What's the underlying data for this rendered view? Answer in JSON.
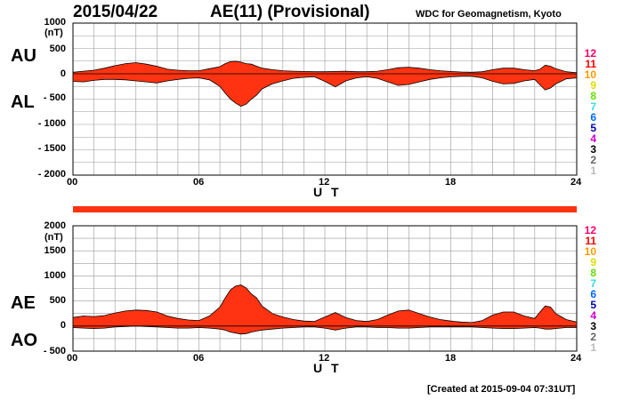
{
  "header": {
    "date": "2015/04/22",
    "title": "AE(11) (Provisional)",
    "source": "WDC for Geomagnetism, Kyoto"
  },
  "footer": {
    "created": "[Created at 2015-09-04 07:31UT]"
  },
  "colors": {
    "fill": "#ff3311",
    "outline": "#000000",
    "grid": "#999999",
    "band": "#ff3311"
  },
  "chart_data": [
    {
      "type": "area",
      "series_labels": [
        "AU",
        "AL"
      ],
      "unit": "(nT)",
      "xlabel": "U T",
      "xlim": [
        0,
        24
      ],
      "ylim": [
        -2000,
        1000
      ],
      "yticks": [
        "1000",
        "500",
        "0",
        "- 500",
        "- 1000",
        "- 1500",
        "- 2000"
      ],
      "xticks": [
        "00",
        "06",
        "12",
        "18",
        "24"
      ],
      "x": [
        0,
        0.5,
        1,
        1.5,
        2,
        2.5,
        3,
        3.5,
        4,
        4.5,
        5,
        5.5,
        6,
        6.5,
        7,
        7.25,
        7.5,
        7.75,
        8,
        8.25,
        8.5,
        8.75,
        9,
        9.5,
        10,
        10.5,
        11,
        11.5,
        12,
        12.5,
        13,
        13.5,
        14,
        14.5,
        15,
        15.5,
        16,
        16.5,
        17,
        17.5,
        18,
        18.5,
        19,
        19.5,
        20,
        20.5,
        21,
        21.5,
        22,
        22.25,
        22.5,
        22.75,
        23,
        23.5,
        24
      ],
      "upper": [
        30,
        50,
        70,
        110,
        160,
        200,
        220,
        190,
        150,
        90,
        70,
        60,
        60,
        100,
        140,
        200,
        240,
        250,
        230,
        200,
        190,
        150,
        110,
        80,
        60,
        50,
        45,
        40,
        40,
        45,
        50,
        40,
        40,
        50,
        80,
        120,
        130,
        110,
        80,
        60,
        45,
        35,
        30,
        40,
        80,
        110,
        110,
        80,
        60,
        90,
        170,
        150,
        100,
        40,
        20
      ],
      "lower": [
        -150,
        -160,
        -130,
        -110,
        -110,
        -120,
        -140,
        -160,
        -180,
        -140,
        -110,
        -90,
        -80,
        -120,
        -250,
        -380,
        -500,
        -580,
        -640,
        -600,
        -500,
        -420,
        -300,
        -200,
        -140,
        -90,
        -70,
        -60,
        -150,
        -260,
        -140,
        -80,
        -60,
        -90,
        -160,
        -230,
        -210,
        -160,
        -110,
        -80,
        -60,
        -50,
        -50,
        -80,
        -150,
        -200,
        -190,
        -140,
        -110,
        -220,
        -320,
        -280,
        -200,
        -100,
        -80
      ]
    },
    {
      "type": "area",
      "series_labels": [
        "AE",
        "AO"
      ],
      "unit": "(nT)",
      "xlabel": "U T",
      "xlim": [
        0,
        24
      ],
      "ylim": [
        -500,
        2000
      ],
      "yticks": [
        "2000",
        "1500",
        "1000",
        "500",
        "0",
        "- 500"
      ],
      "xticks": [
        "00",
        "06",
        "12",
        "18",
        "24"
      ],
      "x": [
        0,
        0.5,
        1,
        1.5,
        2,
        2.5,
        3,
        3.5,
        4,
        4.5,
        5,
        5.5,
        6,
        6.5,
        7,
        7.25,
        7.5,
        7.75,
        8,
        8.25,
        8.5,
        8.75,
        9,
        9.5,
        10,
        10.5,
        11,
        11.5,
        12,
        12.5,
        13,
        13.5,
        14,
        14.5,
        15,
        15.5,
        16,
        16.5,
        17,
        17.5,
        18,
        18.5,
        19,
        19.5,
        20,
        20.5,
        21,
        21.5,
        22,
        22.25,
        22.5,
        22.75,
        23,
        23.5,
        24
      ],
      "upper": [
        170,
        200,
        190,
        210,
        260,
        300,
        320,
        310,
        280,
        200,
        150,
        120,
        110,
        200,
        380,
        560,
        720,
        800,
        820,
        760,
        640,
        560,
        400,
        250,
        180,
        130,
        100,
        90,
        180,
        270,
        170,
        110,
        90,
        130,
        220,
        300,
        320,
        250,
        180,
        130,
        100,
        80,
        70,
        110,
        220,
        280,
        280,
        200,
        150,
        280,
        400,
        380,
        250,
        130,
        80
      ],
      "lower": [
        -30,
        -40,
        -50,
        -40,
        -20,
        -10,
        0,
        -10,
        -20,
        -30,
        -40,
        -40,
        -30,
        -40,
        -60,
        -80,
        -120,
        -140,
        -160,
        -150,
        -120,
        -100,
        -80,
        -60,
        -40,
        -30,
        -20,
        -20,
        -40,
        -80,
        -40,
        -20,
        -20,
        -30,
        -30,
        -40,
        -40,
        -30,
        -20,
        -20,
        -20,
        -20,
        -20,
        -30,
        -40,
        -50,
        -50,
        -40,
        -30,
        -40,
        -60,
        -60,
        -50,
        -30,
        -30
      ]
    }
  ],
  "color_scale": {
    "labels": [
      "12",
      "11",
      "10",
      "9",
      "8",
      "7",
      "6",
      "5",
      "4",
      "3",
      "2",
      "1"
    ],
    "colors": [
      "#ff0066",
      "#ff0000",
      "#ff9900",
      "#dddd00",
      "#66dd00",
      "#33dddd",
      "#0066ff",
      "#0000aa",
      "#cc00cc",
      "#000000",
      "#666666",
      "#bbbbbb"
    ]
  }
}
